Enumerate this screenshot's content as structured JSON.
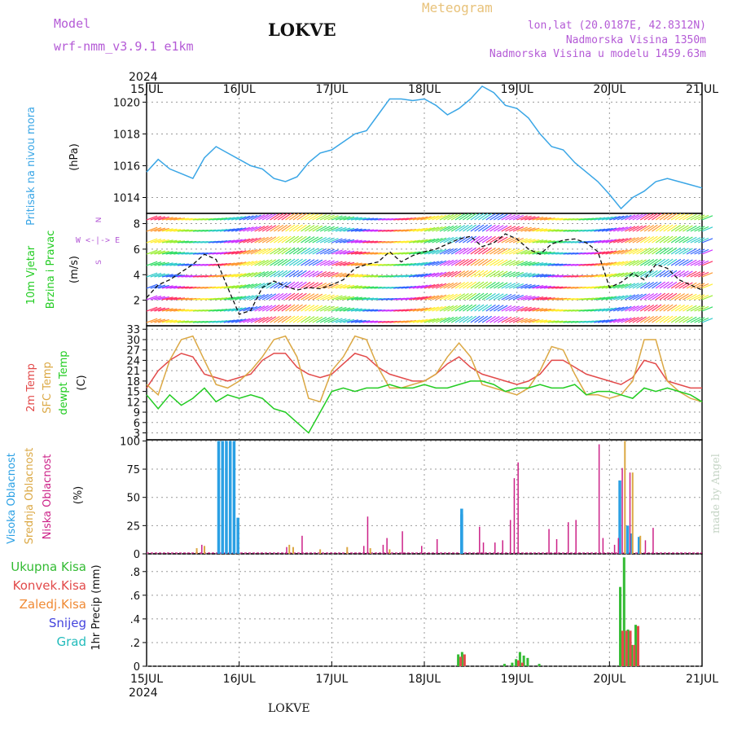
{
  "header": {
    "model_label": "Model",
    "model_value": "wrf-nmm_v3.9.1 e1km",
    "station": "LOKVE",
    "title": "Meteogram",
    "lonlat": "lon,lat (20.0187E, 42.8312N)",
    "altitude": "Nadmorska Visina 1350m",
    "model_altitude": "Nadmorska Visina u modelu 1459.63m"
  },
  "footer": {
    "station": "LOKVE",
    "made_by": "made by Angel"
  },
  "time_axis": {
    "year": "2024",
    "ticks": [
      "15JUL",
      "16JUL",
      "17JUL",
      "18JUL",
      "19JUL",
      "20JUL",
      "21JUL"
    ]
  },
  "colors": {
    "pressure": "#3aa6e6",
    "wind_label": "#22cc22",
    "temp": "#e24a4a",
    "sfc": "#dba844",
    "dew": "#22cc22",
    "cloud_high": "#2aa0e4",
    "cloud_mid": "#dba844",
    "cloud_low": "#cc2288",
    "precip": "#33bb33",
    "conv": "#e24a4a",
    "frozen": "#f08a34",
    "snow": "#4444dd",
    "hail": "#22bbbb",
    "compass": "#b45ad6"
  },
  "panel_labels": {
    "pressure": [
      "Pritisak na nivou mora"
    ],
    "pressure_unit": "(hPa)",
    "wind": [
      "10m Vjetar",
      "Brzina i Pravac"
    ],
    "wind_unit": "(m/s)",
    "temp": [
      "2m Temp",
      "SFC Temp",
      "dewpt Temp"
    ],
    "temp_unit": "(C)",
    "cloud": [
      "Visoka Oblacnost",
      "Srednja Oblacnost",
      "Niska Oblacnost"
    ],
    "cloud_unit": "(%)",
    "precip": [
      "Ukupna Kisa",
      "Konvek.Kisa",
      "Zaledj.Kisa",
      "Snijeg",
      "Grad"
    ],
    "precip_unit": "1hr Precip (mm)",
    "compass": [
      "N",
      "W  <-|->  E",
      "S"
    ]
  },
  "chart_data": [
    {
      "type": "line",
      "title": "Pritisak na nivou mora",
      "ylabel": "(hPa)",
      "ylim": [
        1013,
        1021.2
      ],
      "yticks": [
        1014,
        1016,
        1018,
        1020
      ],
      "x_hours": [
        0,
        3,
        6,
        9,
        12,
        15,
        18,
        21,
        24,
        27,
        30,
        33,
        36,
        39,
        42,
        45,
        48,
        51,
        54,
        57,
        60,
        63,
        66,
        69,
        72,
        75,
        78,
        81,
        84,
        87,
        90,
        93,
        96,
        99,
        102,
        105,
        108,
        111,
        114,
        117,
        120,
        123,
        126,
        129,
        132,
        135,
        138,
        141,
        144
      ],
      "series": [
        {
          "name": "Pritisak na nivou mora",
          "values": [
            1015.6,
            1016.4,
            1015.8,
            1015.5,
            1015.2,
            1016.5,
            1017.2,
            1016.8,
            1016.4,
            1016.0,
            1015.8,
            1015.2,
            1015.0,
            1015.3,
            1016.2,
            1016.8,
            1017.0,
            1017.5,
            1018.0,
            1018.2,
            1019.2,
            1020.2,
            1020.2,
            1020.1,
            1020.2,
            1019.8,
            1019.2,
            1019.6,
            1020.2,
            1021.0,
            1020.6,
            1019.8,
            1019.6,
            1019.0,
            1018.0,
            1017.2,
            1017.0,
            1016.2,
            1015.6,
            1015.0,
            1014.2,
            1013.3,
            1014.0,
            1014.4,
            1015.0,
            1015.2,
            1015.0,
            1014.8,
            1014.6
          ]
        }
      ]
    },
    {
      "type": "line",
      "title": "10m Vjetar Brzina i Pravac",
      "ylabel": "(m/s)",
      "ylim": [
        0,
        8.8
      ],
      "yticks": [
        2,
        4,
        6,
        8
      ],
      "x_hours": [
        0,
        3,
        6,
        9,
        12,
        15,
        18,
        21,
        24,
        27,
        30,
        33,
        36,
        39,
        42,
        45,
        48,
        51,
        54,
        57,
        60,
        63,
        66,
        69,
        72,
        75,
        78,
        81,
        84,
        87,
        90,
        93,
        96,
        99,
        102,
        105,
        108,
        111,
        114,
        117,
        120,
        123,
        126,
        129,
        132,
        135,
        138,
        141,
        144
      ],
      "series": [
        {
          "name": "10m Vjetar",
          "values": [
            2.2,
            3.2,
            3.6,
            4.2,
            4.8,
            5.6,
            5.2,
            3.0,
            0.9,
            1.2,
            3.0,
            3.5,
            3.1,
            2.8,
            3.0,
            2.9,
            3.2,
            3.6,
            4.5,
            4.8,
            5.0,
            5.8,
            5.0,
            5.5,
            5.8,
            6.0,
            6.4,
            6.8,
            7.0,
            6.2,
            6.5,
            7.2,
            6.8,
            6.0,
            5.6,
            6.4,
            6.7,
            6.8,
            6.5,
            5.8,
            3.0,
            3.4,
            4.1,
            3.6,
            4.8,
            4.5,
            3.6,
            3.2,
            2.8
          ]
        }
      ]
    },
    {
      "type": "line",
      "title": "2m Temp / SFC Temp / dewpt Temp",
      "ylabel": "(C)",
      "ylim": [
        1,
        34
      ],
      "yticks": [
        3,
        6,
        9,
        12,
        15,
        18,
        21,
        24,
        27,
        30,
        33
      ],
      "x_hours": [
        0,
        3,
        6,
        9,
        12,
        15,
        18,
        21,
        24,
        27,
        30,
        33,
        36,
        39,
        42,
        45,
        48,
        51,
        54,
        57,
        60,
        63,
        66,
        69,
        72,
        75,
        78,
        81,
        84,
        87,
        90,
        93,
        96,
        99,
        102,
        105,
        108,
        111,
        114,
        117,
        120,
        123,
        126,
        129,
        132,
        135,
        138,
        141,
        144
      ],
      "series": [
        {
          "name": "2m Temp",
          "values": [
            16,
            21,
            24,
            26,
            25,
            20,
            19,
            18,
            19,
            20,
            24,
            26,
            26,
            22,
            20,
            19,
            20,
            23,
            26,
            25,
            22,
            20,
            19,
            18,
            18,
            20,
            23,
            25,
            22,
            20,
            19,
            18,
            17,
            18,
            20,
            24,
            24,
            22,
            20,
            19,
            18,
            17,
            19,
            24,
            23,
            18,
            17,
            16,
            16
          ]
        },
        {
          "name": "SFC Temp",
          "values": [
            17,
            14,
            24,
            30,
            31,
            24,
            17,
            16,
            18,
            21,
            25,
            30,
            31,
            25,
            13,
            12,
            21,
            25,
            31,
            30,
            22,
            16,
            16,
            17,
            18,
            20,
            25,
            29,
            25,
            17,
            16,
            15,
            14,
            16,
            21,
            28,
            27,
            20,
            14,
            14,
            13,
            14,
            18,
            30,
            30,
            18,
            15,
            13,
            12
          ]
        },
        {
          "name": "dewpt Temp",
          "values": [
            14,
            10,
            14,
            11,
            13,
            16,
            12,
            14,
            13,
            14,
            13,
            10,
            9,
            6,
            3,
            9,
            15,
            16,
            15,
            16,
            16,
            17,
            16,
            16,
            17,
            16,
            16,
            17,
            18,
            18,
            17,
            15,
            16,
            16,
            17,
            16,
            16,
            17,
            14,
            15,
            15,
            14,
            13,
            16,
            15,
            16,
            15,
            14,
            12
          ]
        }
      ]
    },
    {
      "type": "bar",
      "title": "Visoka / Srednja / Niska Oblacnost",
      "ylabel": "(%)",
      "ylim": [
        0,
        101
      ],
      "yticks": [
        0,
        25,
        50,
        75,
        100
      ],
      "series": [
        {
          "name": "Visoka Oblacnost",
          "points": [
            [
              19,
              100
            ],
            [
              20,
              100
            ],
            [
              21,
              100
            ],
            [
              22,
              100
            ],
            [
              23,
              100
            ],
            [
              24,
              32
            ],
            [
              82,
              40
            ],
            [
              82,
              35
            ],
            [
              123,
              65
            ],
            [
              125,
              25
            ],
            [
              126,
              18
            ],
            [
              128,
              15
            ]
          ]
        },
        {
          "name": "Srednja Oblacnost",
          "points": [
            [
              13,
              5
            ],
            [
              15,
              7
            ],
            [
              37,
              8
            ],
            [
              38,
              6
            ],
            [
              45,
              4
            ],
            [
              52,
              6
            ],
            [
              58,
              5
            ],
            [
              63,
              4
            ],
            [
              124,
              100
            ],
            [
              126,
              72
            ],
            [
              128,
              16
            ]
          ]
        },
        {
          "name": "Niska Oblacnost",
          "points": [
            [
              14,
              8
            ],
            [
              36,
              6
            ],
            [
              40,
              16
            ],
            [
              56,
              7
            ],
            [
              57,
              33
            ],
            [
              61,
              8
            ],
            [
              62,
              14
            ],
            [
              66,
              20
            ],
            [
              71,
              7
            ],
            [
              75,
              13
            ],
            [
              86,
              24
            ],
            [
              87,
              10
            ],
            [
              90,
              10
            ],
            [
              92,
              12
            ],
            [
              94,
              30
            ],
            [
              95,
              67
            ],
            [
              96,
              81
            ],
            [
              104,
              22
            ],
            [
              106,
              13
            ],
            [
              109,
              28
            ],
            [
              111,
              30
            ],
            [
              117,
              97
            ],
            [
              118,
              14
            ],
            [
              121,
              8
            ],
            [
              122,
              14
            ],
            [
              123,
              76
            ],
            [
              125,
              72
            ],
            [
              129,
              12
            ],
            [
              131,
              23
            ]
          ]
        }
      ]
    },
    {
      "type": "bar",
      "title": "1hr Precip",
      "ylabel": "1hr Precip (mm)",
      "ylim": [
        0,
        0.95
      ],
      "yticks": [
        0,
        0.2,
        0.4,
        0.6,
        0.8
      ],
      "series": [
        {
          "name": "Ukupna Kisa",
          "points": [
            [
              81,
              0.1
            ],
            [
              82,
              0.12
            ],
            [
              93,
              0.02
            ],
            [
              95,
              0.03
            ],
            [
              96,
              0.06
            ],
            [
              97,
              0.12
            ],
            [
              98,
              0.09
            ],
            [
              99,
              0.07
            ],
            [
              102,
              0.02
            ],
            [
              123,
              0.67
            ],
            [
              124,
              0.92
            ],
            [
              125,
              0.31
            ],
            [
              126,
              0.18
            ],
            [
              127,
              0.35
            ]
          ]
        },
        {
          "name": "Konvek.Kisa",
          "points": [
            [
              81,
              0.08
            ],
            [
              82,
              0.1
            ],
            [
              96,
              0.05
            ],
            [
              97,
              0.03
            ],
            [
              123,
              0.3
            ],
            [
              124,
              0.3
            ],
            [
              125,
              0.3
            ],
            [
              126,
              0.18
            ],
            [
              127,
              0.34
            ]
          ]
        },
        {
          "name": "Zaledj.Kisa",
          "points": []
        },
        {
          "name": "Snijeg",
          "points": []
        },
        {
          "name": "Grad",
          "points": []
        }
      ]
    }
  ]
}
